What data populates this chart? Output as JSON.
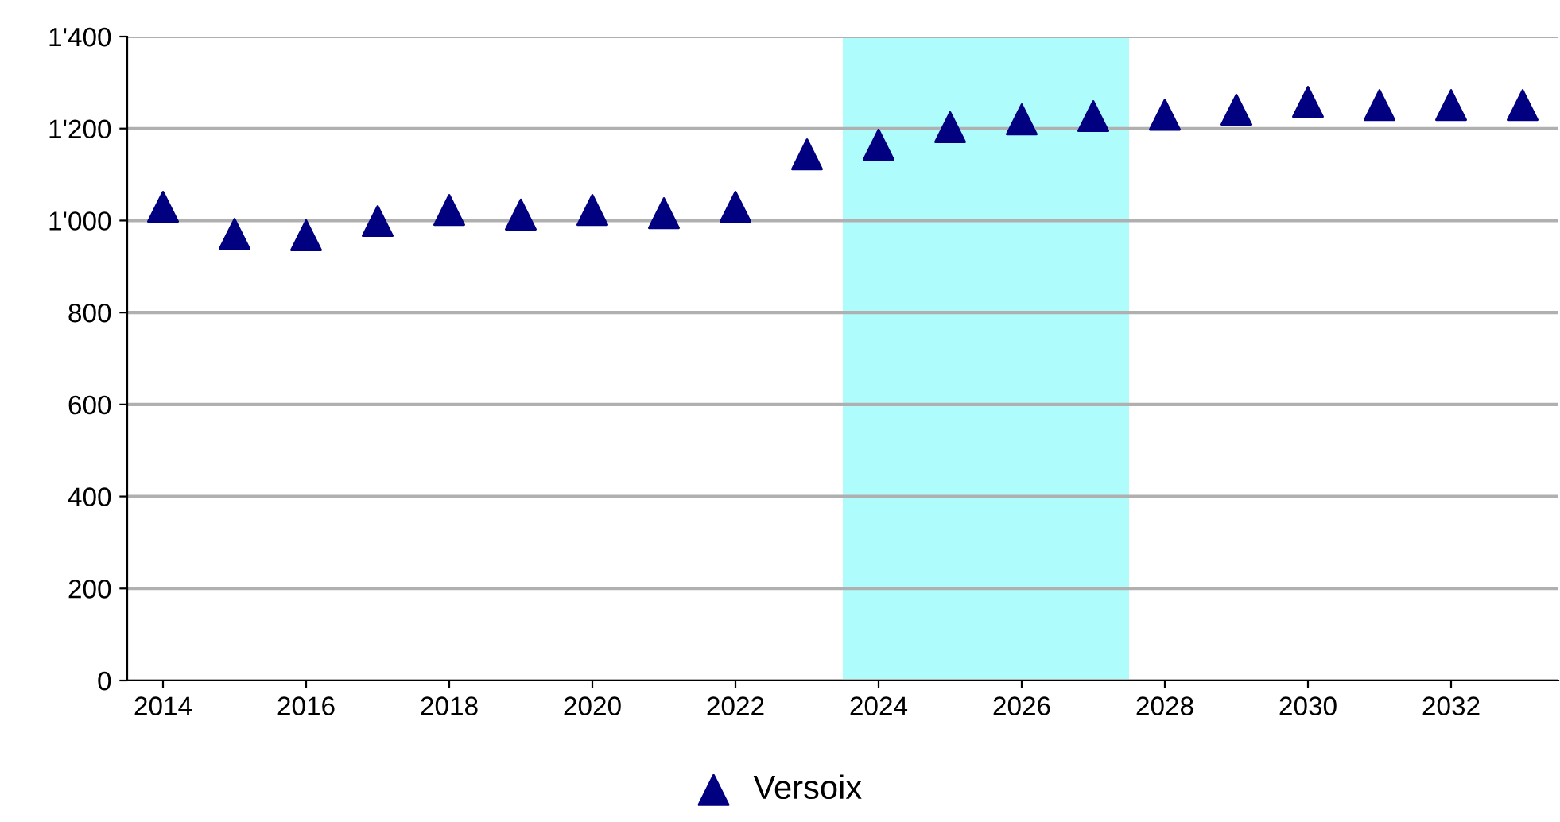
{
  "chart_data": {
    "type": "scatter",
    "x": [
      2014,
      2015,
      2016,
      2017,
      2018,
      2019,
      2020,
      2021,
      2022,
      2023,
      2024,
      2025,
      2026,
      2027,
      2028,
      2029,
      2030,
      2031,
      2032,
      2033
    ],
    "series": [
      {
        "name": "Versoix",
        "color": "#000080",
        "values": [
          1030,
          971,
          968,
          999,
          1023,
          1013,
          1023,
          1016,
          1030,
          1144,
          1165,
          1203,
          1220,
          1227,
          1230,
          1241,
          1258,
          1251,
          1251,
          1251
        ]
      }
    ],
    "marker": "triangle",
    "xlim": [
      2013.5,
      2033.5
    ],
    "xticks": [
      2014,
      2016,
      2018,
      2020,
      2022,
      2024,
      2026,
      2028,
      2030,
      2032
    ],
    "ylim": [
      0,
      1400
    ],
    "yticks": [
      {
        "value": 0,
        "label": "0"
      },
      {
        "value": 200,
        "label": "200"
      },
      {
        "value": 400,
        "label": "400"
      },
      {
        "value": 600,
        "label": "600"
      },
      {
        "value": 800,
        "label": "800"
      },
      {
        "value": 1000,
        "label": "1'000"
      },
      {
        "value": 1200,
        "label": "1'200"
      },
      {
        "value": 1400,
        "label": "1'400"
      }
    ],
    "bands": [
      {
        "axis": "x",
        "from": 2023.5,
        "to": 2027.5,
        "color": "#aefcfc"
      }
    ],
    "grid": "y",
    "legend": "bottom"
  }
}
